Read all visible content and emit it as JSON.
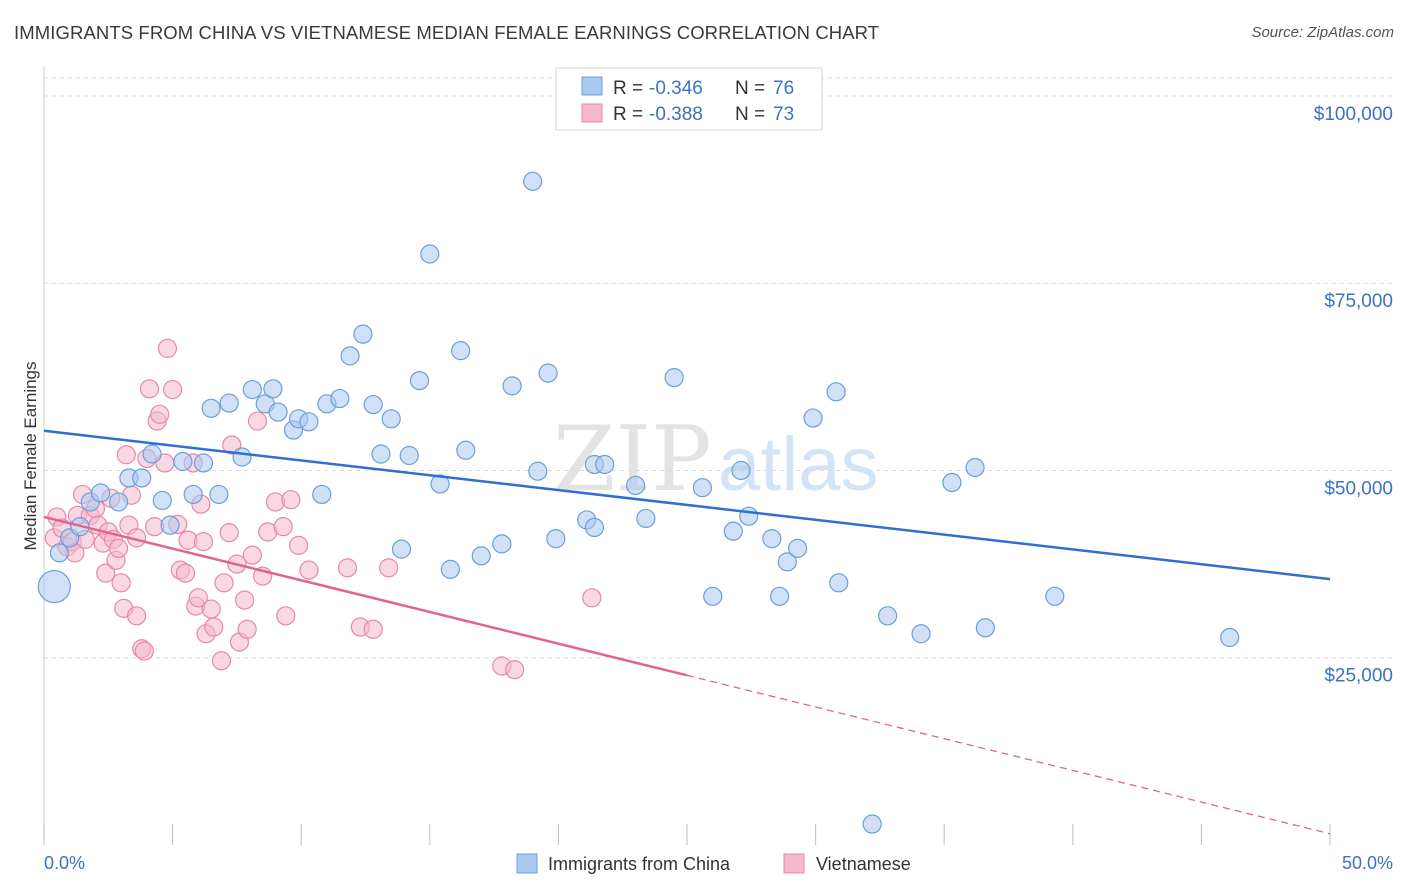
{
  "title": "IMMIGRANTS FROM CHINA VS VIETNAMESE MEDIAN FEMALE EARNINGS CORRELATION CHART",
  "source": "Source: ZipAtlas.com",
  "watermark": {
    "part1": "ZIP",
    "part2": "atlas"
  },
  "legend": {
    "rows": [
      {
        "r_label": "R = ",
        "r_value": "-0.346",
        "n_label": "N = ",
        "n_value": "76",
        "color": "#a9c9f0"
      },
      {
        "r_label": "R = ",
        "r_value": "-0.388",
        "n_label": "N = ",
        "n_value": "73",
        "color": "#f6b8cc"
      }
    ]
  },
  "bottom_legend": [
    {
      "label": "Immigrants from China",
      "color": "#a9c9f0"
    },
    {
      "label": "Vietnamese",
      "color": "#f6b8cc"
    }
  ],
  "colors": {
    "china_fill": "#a9c9f0",
    "china_stroke": "#6a9fd8",
    "china_line": "#2e6fd1",
    "viet_fill": "#f6b8cc",
    "viet_stroke": "#e589a8",
    "viet_line": "#e0648f",
    "grid": "#dedede",
    "axis_text": "#3b72c4"
  },
  "chart_data": {
    "type": "scatter",
    "title": "IMMIGRANTS FROM CHINA VS VIETNAMESE MEDIAN FEMALE EARNINGS CORRELATION CHART",
    "xlabel": "",
    "ylabel": "Median Female Earnings",
    "xlim": [
      0,
      50
    ],
    "ylim": [
      0,
      104000
    ],
    "x_ticks": [
      "0.0%",
      "50.0%"
    ],
    "y_ticks": [
      {
        "value": 25000,
        "label": "$25,000"
      },
      {
        "value": 50000,
        "label": "$50,000"
      },
      {
        "value": 75000,
        "label": "$75,000"
      },
      {
        "value": 100000,
        "label": "$100,000"
      }
    ],
    "grid": true,
    "legend_position": "top-center",
    "series": [
      {
        "name": "Immigrants from China",
        "r": -0.346,
        "n": 76,
        "trend": {
          "x0": 0,
          "y0": 55300,
          "x1": 50,
          "y1": 35500,
          "dashed_from": null
        },
        "points": [
          [
            0.4,
            34500,
            16
          ],
          [
            0.6,
            39000,
            9
          ],
          [
            1.0,
            41000,
            9
          ],
          [
            1.4,
            42500,
            9
          ],
          [
            1.8,
            45800,
            9
          ],
          [
            2.2,
            47000,
            9
          ],
          [
            2.9,
            45800,
            9
          ],
          [
            3.3,
            49000,
            9
          ],
          [
            3.8,
            49000,
            9
          ],
          [
            4.2,
            52200,
            9
          ],
          [
            4.6,
            46000,
            9
          ],
          [
            4.9,
            42700,
            9
          ],
          [
            5.4,
            51200,
            9
          ],
          [
            5.8,
            46800,
            9
          ],
          [
            6.2,
            51000,
            9
          ],
          [
            6.5,
            58300,
            9
          ],
          [
            6.8,
            46800,
            9
          ],
          [
            7.2,
            59000,
            9
          ],
          [
            7.7,
            51800,
            9
          ],
          [
            8.1,
            60800,
            9
          ],
          [
            8.6,
            58900,
            9
          ],
          [
            8.9,
            60900,
            9
          ],
          [
            9.1,
            57800,
            9
          ],
          [
            9.7,
            55400,
            9
          ],
          [
            9.9,
            56900,
            9
          ],
          [
            10.3,
            56500,
            9
          ],
          [
            10.8,
            46800,
            9
          ],
          [
            11.0,
            58900,
            9
          ],
          [
            11.5,
            59600,
            9
          ],
          [
            11.9,
            65300,
            9
          ],
          [
            12.4,
            68200,
            9
          ],
          [
            12.8,
            58800,
            9
          ],
          [
            13.1,
            52200,
            9
          ],
          [
            13.5,
            56900,
            9
          ],
          [
            13.9,
            39500,
            9
          ],
          [
            14.2,
            52000,
            9
          ],
          [
            14.6,
            62000,
            9
          ],
          [
            15.0,
            78900,
            9
          ],
          [
            15.4,
            48200,
            9
          ],
          [
            15.8,
            36800,
            9
          ],
          [
            16.2,
            66000,
            9
          ],
          [
            16.4,
            52700,
            9
          ],
          [
            17.0,
            38600,
            9
          ],
          [
            17.8,
            40200,
            9
          ],
          [
            18.2,
            61300,
            9
          ],
          [
            19.0,
            88600,
            9
          ],
          [
            19.2,
            49900,
            9
          ],
          [
            19.6,
            63000,
            9
          ],
          [
            19.9,
            40900,
            9
          ],
          [
            21.1,
            43400,
            9
          ],
          [
            21.4,
            42400,
            9
          ],
          [
            21.4,
            50800,
            9
          ],
          [
            21.8,
            50800,
            9
          ],
          [
            23.0,
            48000,
            9
          ],
          [
            23.4,
            43600,
            9
          ],
          [
            24.5,
            62400,
            9
          ],
          [
            25.6,
            47700,
            9
          ],
          [
            26.0,
            33200,
            9
          ],
          [
            26.8,
            41900,
            9
          ],
          [
            27.1,
            50000,
            9
          ],
          [
            27.4,
            43900,
            9
          ],
          [
            28.3,
            40900,
            9
          ],
          [
            28.6,
            33200,
            9
          ],
          [
            28.9,
            37800,
            9
          ],
          [
            29.3,
            39600,
            9
          ],
          [
            29.9,
            57000,
            9
          ],
          [
            30.8,
            60500,
            9
          ],
          [
            30.9,
            35000,
            9
          ],
          [
            32.8,
            30600,
            9
          ],
          [
            32.2,
            2800,
            9
          ],
          [
            34.1,
            28200,
            9
          ],
          [
            35.3,
            48400,
            9
          ],
          [
            36.2,
            50400,
            9
          ],
          [
            36.6,
            29000,
            9
          ],
          [
            39.3,
            33200,
            9
          ],
          [
            46.1,
            27700,
            9
          ]
        ]
      },
      {
        "name": "Vietnamese",
        "r": -0.388,
        "n": 73,
        "trend": {
          "x0": 0,
          "y0": 43800,
          "x1": 50,
          "y1": 1500,
          "dashed_from": 25
        },
        "points": [
          [
            0.4,
            41000,
            9
          ],
          [
            0.5,
            43800,
            9
          ],
          [
            0.7,
            42300,
            9
          ],
          [
            0.9,
            39800,
            9
          ],
          [
            1.1,
            40500,
            9
          ],
          [
            1.2,
            39000,
            9
          ],
          [
            1.3,
            44000,
            9
          ],
          [
            1.5,
            46800,
            9
          ],
          [
            1.6,
            40800,
            9
          ],
          [
            1.8,
            44000,
            9
          ],
          [
            2.0,
            44900,
            9
          ],
          [
            2.1,
            42700,
            9
          ],
          [
            2.3,
            40300,
            9
          ],
          [
            2.4,
            36300,
            9
          ],
          [
            2.5,
            41800,
            9
          ],
          [
            2.6,
            46300,
            9
          ],
          [
            2.7,
            40800,
            9
          ],
          [
            2.8,
            38000,
            9
          ],
          [
            2.9,
            39600,
            9
          ],
          [
            3.0,
            35000,
            9
          ],
          [
            3.1,
            31600,
            9
          ],
          [
            3.2,
            52100,
            9
          ],
          [
            3.3,
            42700,
            9
          ],
          [
            3.4,
            46700,
            9
          ],
          [
            3.6,
            30600,
            9
          ],
          [
            3.8,
            26200,
            9
          ],
          [
            3.9,
            25900,
            9
          ],
          [
            3.6,
            41000,
            9
          ],
          [
            4.0,
            51600,
            9
          ],
          [
            4.1,
            60900,
            9
          ],
          [
            4.3,
            42500,
            9
          ],
          [
            4.4,
            56600,
            9
          ],
          [
            4.5,
            57500,
            9
          ],
          [
            4.7,
            51000,
            9
          ],
          [
            4.8,
            66300,
            9
          ],
          [
            5.0,
            60800,
            9
          ],
          [
            5.2,
            42800,
            9
          ],
          [
            5.3,
            36700,
            9
          ],
          [
            5.5,
            36300,
            9
          ],
          [
            5.6,
            40700,
            9
          ],
          [
            5.8,
            51000,
            9
          ],
          [
            5.9,
            31900,
            9
          ],
          [
            6.0,
            33000,
            9
          ],
          [
            6.1,
            45500,
            9
          ],
          [
            6.2,
            40500,
            9
          ],
          [
            6.3,
            28200,
            9
          ],
          [
            6.5,
            31500,
            9
          ],
          [
            6.6,
            29100,
            9
          ],
          [
            6.9,
            24600,
            9
          ],
          [
            7.0,
            35000,
            9
          ],
          [
            7.2,
            41700,
            9
          ],
          [
            7.3,
            53400,
            9
          ],
          [
            7.5,
            37500,
            9
          ],
          [
            7.6,
            27100,
            9
          ],
          [
            7.8,
            32700,
            9
          ],
          [
            7.9,
            28800,
            9
          ],
          [
            8.1,
            38700,
            9
          ],
          [
            8.3,
            56600,
            9
          ],
          [
            8.5,
            35900,
            9
          ],
          [
            8.7,
            41800,
            9
          ],
          [
            9.0,
            45800,
            9
          ],
          [
            9.3,
            42500,
            9
          ],
          [
            9.6,
            46100,
            9
          ],
          [
            9.4,
            30600,
            9
          ],
          [
            9.9,
            40000,
            9
          ],
          [
            10.3,
            36700,
            9
          ],
          [
            11.8,
            37000,
            9
          ],
          [
            12.3,
            29100,
            9
          ],
          [
            12.8,
            28800,
            9
          ],
          [
            13.4,
            37000,
            9
          ],
          [
            17.8,
            23900,
            9
          ],
          [
            18.3,
            23400,
            9
          ],
          [
            21.3,
            33000,
            9
          ]
        ]
      }
    ]
  }
}
